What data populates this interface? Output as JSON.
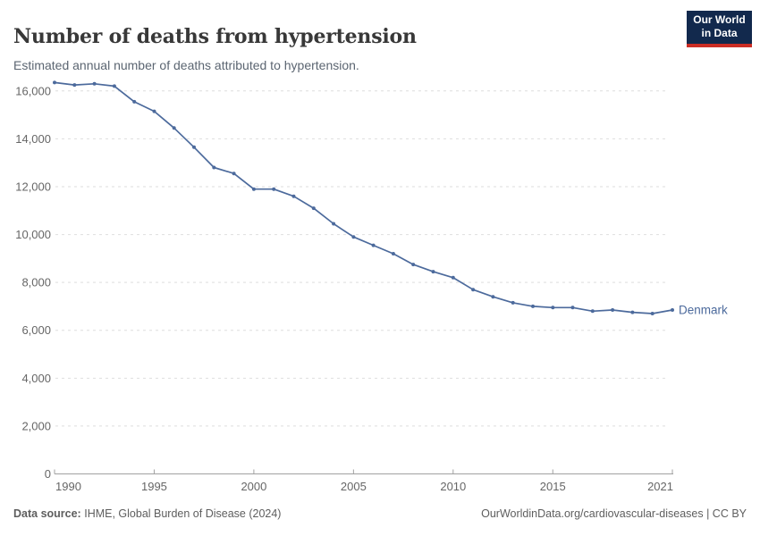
{
  "header": {
    "title": "Number of deaths from hypertension",
    "subtitle": "Estimated annual number of deaths attributed to hypertension.",
    "logo_line1": "Our World",
    "logo_line2": "in Data"
  },
  "chart_data": {
    "type": "line",
    "title": "Number of deaths from hypertension",
    "xlabel": "",
    "ylabel": "",
    "x": [
      1990,
      1991,
      1992,
      1993,
      1994,
      1995,
      1996,
      1997,
      1998,
      1999,
      2000,
      2001,
      2002,
      2003,
      2004,
      2005,
      2006,
      2007,
      2008,
      2009,
      2010,
      2011,
      2012,
      2013,
      2014,
      2015,
      2016,
      2017,
      2018,
      2019,
      2020,
      2021
    ],
    "series": [
      {
        "name": "Denmark",
        "values": [
          16350,
          16250,
          16300,
          16200,
          15550,
          15150,
          14450,
          13650,
          12800,
          12550,
          11900,
          11900,
          11600,
          11100,
          10450,
          9900,
          9550,
          9200,
          8750,
          8450,
          8200,
          7700,
          7400,
          7150,
          7000,
          6950,
          6950,
          6800,
          6850,
          6750,
          6700,
          6850
        ]
      }
    ],
    "xlim": [
      1990,
      2021
    ],
    "ylim": [
      0,
      16600
    ],
    "xticks": [
      1990,
      1995,
      2000,
      2005,
      2010,
      2015,
      2021
    ],
    "yticks": [
      0,
      2000,
      4000,
      6000,
      8000,
      10000,
      12000,
      14000,
      16000
    ],
    "grid": "horizontal-dashed",
    "legend_position": "end-of-line-label",
    "entity_label": "Denmark"
  },
  "footer": {
    "source_label": "Data source:",
    "source_text": "IHME, Global Burden of Disease (2024)",
    "credit": "OurWorldinData.org/cardiovascular-diseases | CC BY"
  },
  "colors": {
    "line": "#4C6A9C",
    "entity_label": "#4C6A9C",
    "gridline": "#dedede",
    "axis": "#a1a1a1",
    "tick_label": "#666666",
    "title": "#383838",
    "subtitle": "#5b6571",
    "footer": "#5e5e5e",
    "logo_bg": "#12294d",
    "logo_stripe": "#cb2d24"
  }
}
